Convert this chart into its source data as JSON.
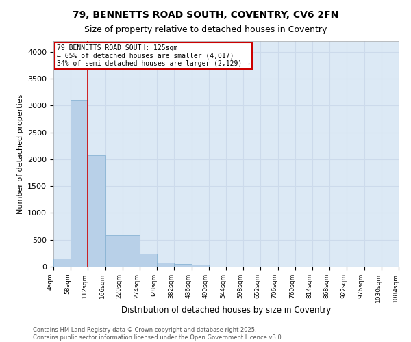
{
  "title_line1": "79, BENNETTS ROAD SOUTH, COVENTRY, CV6 2FN",
  "title_line2": "Size of property relative to detached houses in Coventry",
  "xlabel": "Distribution of detached houses by size in Coventry",
  "ylabel": "Number of detached properties",
  "annotation_line1": "79 BENNETTS ROAD SOUTH: 125sqm",
  "annotation_line2": "← 65% of detached houses are smaller (4,017)",
  "annotation_line3": "34% of semi-detached houses are larger (2,129) →",
  "footer_line1": "Contains HM Land Registry data © Crown copyright and database right 2025.",
  "footer_line2": "Contains public sector information licensed under the Open Government Licence v3.0.",
  "bar_values": [
    150,
    3100,
    2075,
    590,
    590,
    240,
    75,
    50,
    35,
    0,
    0,
    0,
    0,
    0,
    0,
    0,
    0,
    0,
    0,
    0
  ],
  "bin_labels": [
    "4sqm",
    "58sqm",
    "112sqm",
    "166sqm",
    "220sqm",
    "274sqm",
    "328sqm",
    "382sqm",
    "436sqm",
    "490sqm",
    "544sqm",
    "598sqm",
    "652sqm",
    "706sqm",
    "760sqm",
    "814sqm",
    "868sqm",
    "922sqm",
    "976sqm",
    "1030sqm",
    "1084sqm"
  ],
  "bar_color": "#b8d0e8",
  "bar_edge_color": "#8ab4d4",
  "vline_color": "#cc0000",
  "annotation_box_color": "#ffffff",
  "annotation_box_edge": "#cc0000",
  "ylim": [
    0,
    4200
  ],
  "yticks": [
    0,
    500,
    1000,
    1500,
    2000,
    2500,
    3000,
    3500,
    4000
  ],
  "grid_color": "#ccdaeb",
  "background_color": "#dce9f5",
  "figsize": [
    6.0,
    5.0
  ],
  "dpi": 100
}
